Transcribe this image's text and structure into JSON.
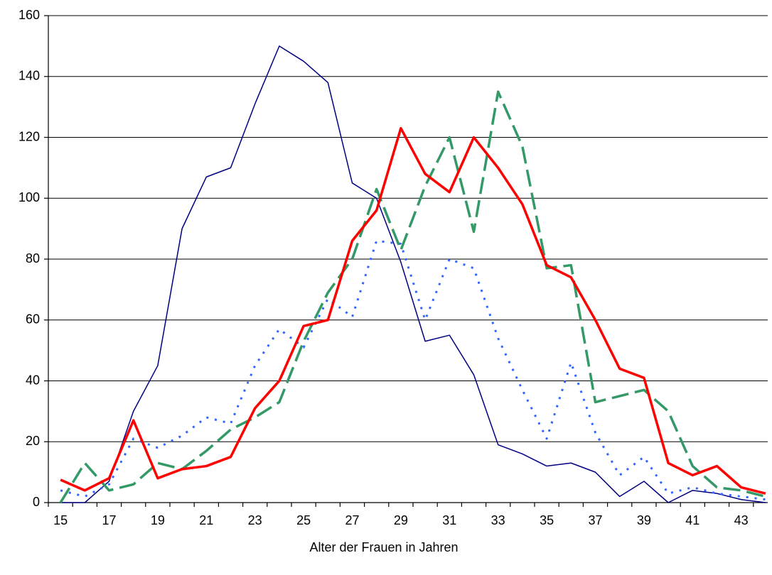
{
  "chart_data": {
    "type": "line",
    "xlabel": "Alter der Frauen in Jahren",
    "categories": [
      15,
      null,
      17,
      null,
      19,
      null,
      21,
      null,
      23,
      null,
      25,
      null,
      27,
      null,
      29,
      null,
      31,
      null,
      33,
      null,
      35,
      null,
      37,
      null,
      39,
      null,
      41,
      null,
      43,
      null
    ],
    "series": [
      {
        "color": "#000080",
        "style": "solid",
        "weight": "thin",
        "values": [
          0,
          0,
          7,
          30,
          45,
          90,
          107,
          110,
          131,
          150,
          145,
          138,
          105,
          100,
          79,
          53,
          55,
          42,
          19,
          16,
          12,
          13,
          10,
          2,
          7,
          0,
          4,
          3,
          1,
          0
        ]
      },
      {
        "color": "#3366ff",
        "style": "dotted",
        "weight": "medium",
        "values": [
          4,
          2,
          6,
          21,
          18,
          22,
          28,
          26,
          45,
          57,
          51,
          67,
          61,
          86,
          85,
          60,
          80,
          77,
          54,
          37,
          21,
          46,
          23,
          9,
          15,
          3,
          5,
          3,
          2,
          1
        ]
      },
      {
        "color": "#339966",
        "style": "dashed",
        "weight": "thick",
        "values": [
          0,
          13,
          4,
          6,
          13,
          11,
          17,
          24,
          28,
          33,
          53,
          69,
          80,
          103,
          83,
          104,
          120,
          89,
          135,
          117,
          77,
          78,
          33,
          35,
          37,
          30,
          12,
          5,
          4,
          2
        ]
      },
      {
        "color": "#ff0000",
        "style": "solid",
        "weight": "thick",
        "values": [
          7.5,
          4,
          8,
          27,
          8,
          11,
          12,
          15,
          31,
          40,
          58,
          60,
          86,
          96,
          123,
          108,
          102,
          120,
          110,
          98,
          78,
          74,
          60,
          44,
          41,
          13,
          9,
          12,
          5,
          3
        ]
      }
    ],
    "ylim": [
      0,
      160
    ],
    "yticks": [
      0,
      20,
      40,
      60,
      80,
      100,
      120,
      140,
      160
    ],
    "grid": true
  }
}
